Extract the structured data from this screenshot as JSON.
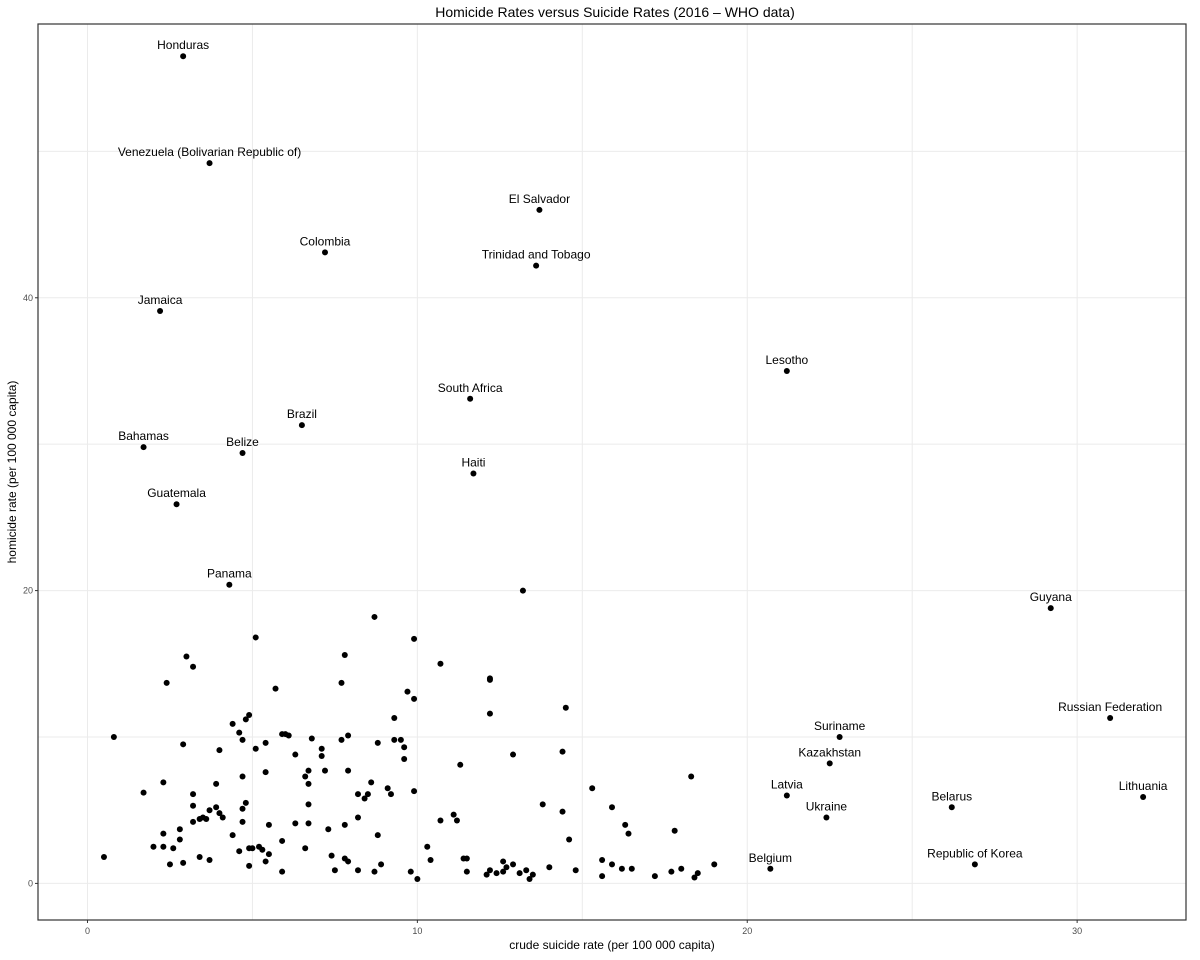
{
  "chart_data": {
    "type": "scatter",
    "title": "Homicide Rates versus Suicide Rates (2016 – WHO data)",
    "xlabel": "crude suicide rate (per 100 000 capita)",
    "ylabel": "homicide rate (per 100 000 capita)",
    "xlim": [
      -1.5,
      33.3
    ],
    "ylim": [
      -2.5,
      58.7
    ],
    "x_ticks": [
      0,
      10,
      20,
      30
    ],
    "y_ticks": [
      0,
      20,
      40
    ],
    "grid": true,
    "legend": "none",
    "colors": {
      "point": "#000000",
      "grid": "#ebebeb",
      "frame": "#333333"
    },
    "labeled_points": [
      {
        "label": "Honduras",
        "x": 2.9,
        "y": 56.5
      },
      {
        "label": "Venezuela (Bolivarian Republic of)",
        "x": 3.7,
        "y": 49.2
      },
      {
        "label": "El Salvador",
        "x": 13.7,
        "y": 46.0
      },
      {
        "label": "Colombia",
        "x": 7.2,
        "y": 43.1
      },
      {
        "label": "Trinidad and Tobago",
        "x": 13.6,
        "y": 42.2
      },
      {
        "label": "Jamaica",
        "x": 2.2,
        "y": 39.1
      },
      {
        "label": "Lesotho",
        "x": 21.2,
        "y": 35.0
      },
      {
        "label": "South Africa",
        "x": 11.6,
        "y": 33.1
      },
      {
        "label": "Brazil",
        "x": 6.5,
        "y": 31.3
      },
      {
        "label": "Bahamas",
        "x": 1.7,
        "y": 29.8
      },
      {
        "label": "Belize",
        "x": 4.7,
        "y": 29.4
      },
      {
        "label": "Haiti",
        "x": 11.7,
        "y": 28.0
      },
      {
        "label": "Guatemala",
        "x": 2.7,
        "y": 25.9
      },
      {
        "label": "Panama",
        "x": 4.3,
        "y": 20.4
      },
      {
        "label": "Guyana",
        "x": 29.2,
        "y": 18.8
      },
      {
        "label": "Russian Federation",
        "x": 31.0,
        "y": 11.3
      },
      {
        "label": "Suriname",
        "x": 22.8,
        "y": 10.0
      },
      {
        "label": "Kazakhstan",
        "x": 22.5,
        "y": 8.2
      },
      {
        "label": "Latvia",
        "x": 21.2,
        "y": 6.0
      },
      {
        "label": "Lithuania",
        "x": 32.0,
        "y": 5.9
      },
      {
        "label": "Belarus",
        "x": 26.2,
        "y": 5.2
      },
      {
        "label": "Ukraine",
        "x": 22.4,
        "y": 4.5
      },
      {
        "label": "Belgium",
        "x": 20.7,
        "y": 1.0
      },
      {
        "label": "Republic of Korea",
        "x": 26.9,
        "y": 1.3
      }
    ],
    "points": [
      [
        13.2,
        20.0
      ],
      [
        8.7,
        18.2
      ],
      [
        5.1,
        16.8
      ],
      [
        9.9,
        16.7
      ],
      [
        7.8,
        15.6
      ],
      [
        3.0,
        15.5
      ],
      [
        3.2,
        14.8
      ],
      [
        10.7,
        15.0
      ],
      [
        12.2,
        14.0
      ],
      [
        12.2,
        13.9
      ],
      [
        2.4,
        13.7
      ],
      [
        7.7,
        13.7
      ],
      [
        5.7,
        13.3
      ],
      [
        9.7,
        13.1
      ],
      [
        9.9,
        12.6
      ],
      [
        14.5,
        12.0
      ],
      [
        4.9,
        11.5
      ],
      [
        12.2,
        11.6
      ],
      [
        4.8,
        11.2
      ],
      [
        9.3,
        11.3
      ],
      [
        4.4,
        10.9
      ],
      [
        4.6,
        10.3
      ],
      [
        5.9,
        10.2
      ],
      [
        6.0,
        10.2
      ],
      [
        6.1,
        10.1
      ],
      [
        7.9,
        10.1
      ],
      [
        0.8,
        10.0
      ],
      [
        6.8,
        9.9
      ],
      [
        4.7,
        9.8
      ],
      [
        5.4,
        9.6
      ],
      [
        7.7,
        9.8
      ],
      [
        9.3,
        9.8
      ],
      [
        9.5,
        9.8
      ],
      [
        2.9,
        9.5
      ],
      [
        4.0,
        9.1
      ],
      [
        5.1,
        9.2
      ],
      [
        7.1,
        9.2
      ],
      [
        8.8,
        9.6
      ],
      [
        9.6,
        9.3
      ],
      [
        14.4,
        9.0
      ],
      [
        6.3,
        8.8
      ],
      [
        7.1,
        8.7
      ],
      [
        12.9,
        8.8
      ],
      [
        9.6,
        8.5
      ],
      [
        11.3,
        8.1
      ],
      [
        6.7,
        7.7
      ],
      [
        5.4,
        7.6
      ],
      [
        7.2,
        7.7
      ],
      [
        6.6,
        7.3
      ],
      [
        7.9,
        7.7
      ],
      [
        4.7,
        7.3
      ],
      [
        2.3,
        6.9
      ],
      [
        18.3,
        7.3
      ],
      [
        6.7,
        6.8
      ],
      [
        3.9,
        6.8
      ],
      [
        8.6,
        6.9
      ],
      [
        9.1,
        6.5
      ],
      [
        1.7,
        6.2
      ],
      [
        3.2,
        6.1
      ],
      [
        8.2,
        6.1
      ],
      [
        8.5,
        6.1
      ],
      [
        9.2,
        6.1
      ],
      [
        9.9,
        6.3
      ],
      [
        8.4,
        5.8
      ],
      [
        15.3,
        6.5
      ],
      [
        4.8,
        5.5
      ],
      [
        3.2,
        5.3
      ],
      [
        6.7,
        5.4
      ],
      [
        4.7,
        5.1
      ],
      [
        3.9,
        5.2
      ],
      [
        3.7,
        5.0
      ],
      [
        4.0,
        4.8
      ],
      [
        13.8,
        5.4
      ],
      [
        15.9,
        5.2
      ],
      [
        14.4,
        4.9
      ],
      [
        11.1,
        4.7
      ],
      [
        4.1,
        4.5
      ],
      [
        4.7,
        4.2
      ],
      [
        3.5,
        4.5
      ],
      [
        3.4,
        4.4
      ],
      [
        3.6,
        4.4
      ],
      [
        3.2,
        4.2
      ],
      [
        6.3,
        4.1
      ],
      [
        5.5,
        4.0
      ],
      [
        7.8,
        4.0
      ],
      [
        6.7,
        4.1
      ],
      [
        8.2,
        4.5
      ],
      [
        10.7,
        4.3
      ],
      [
        11.2,
        4.3
      ],
      [
        16.3,
        4.0
      ],
      [
        7.3,
        3.7
      ],
      [
        2.8,
        3.7
      ],
      [
        17.8,
        3.6
      ],
      [
        2.3,
        3.4
      ],
      [
        4.4,
        3.3
      ],
      [
        8.8,
        3.3
      ],
      [
        16.4,
        3.4
      ],
      [
        6.6,
        2.4
      ],
      [
        2.8,
        3.0
      ],
      [
        5.9,
        2.9
      ],
      [
        14.6,
        3.0
      ],
      [
        2.0,
        2.5
      ],
      [
        2.3,
        2.5
      ],
      [
        2.6,
        2.4
      ],
      [
        4.9,
        2.4
      ],
      [
        5.0,
        2.4
      ],
      [
        5.2,
        2.5
      ],
      [
        5.3,
        2.3
      ],
      [
        10.3,
        2.5
      ],
      [
        4.6,
        2.2
      ],
      [
        5.5,
        2.0
      ],
      [
        0.5,
        1.8
      ],
      [
        7.4,
        1.9
      ],
      [
        3.4,
        1.8
      ],
      [
        7.8,
        1.7
      ],
      [
        7.9,
        1.5
      ],
      [
        10.4,
        1.6
      ],
      [
        11.4,
        1.7
      ],
      [
        11.5,
        1.7
      ],
      [
        12.6,
        1.5
      ],
      [
        15.6,
        1.6
      ],
      [
        3.7,
        1.6
      ],
      [
        5.4,
        1.5
      ],
      [
        2.5,
        1.3
      ],
      [
        2.9,
        1.4
      ],
      [
        4.9,
        1.2
      ],
      [
        8.9,
        1.3
      ],
      [
        15.9,
        1.3
      ],
      [
        12.9,
        1.3
      ],
      [
        12.7,
        1.1
      ],
      [
        18.0,
        1.0
      ],
      [
        19.0,
        1.3
      ],
      [
        5.9,
        0.8
      ],
      [
        7.5,
        0.9
      ],
      [
        8.2,
        0.9
      ],
      [
        8.7,
        0.8
      ],
      [
        9.8,
        0.8
      ],
      [
        11.5,
        0.8
      ],
      [
        12.6,
        0.8
      ],
      [
        12.2,
        0.9
      ],
      [
        12.4,
        0.7
      ],
      [
        13.3,
        0.9
      ],
      [
        14.0,
        1.1
      ],
      [
        14.8,
        0.9
      ],
      [
        16.2,
        1.0
      ],
      [
        16.5,
        1.0
      ],
      [
        17.7,
        0.8
      ],
      [
        13.5,
        0.6
      ],
      [
        15.6,
        0.5
      ],
      [
        17.2,
        0.5
      ],
      [
        18.4,
        0.4
      ],
      [
        18.5,
        0.7
      ],
      [
        12.1,
        0.6
      ],
      [
        13.1,
        0.7
      ],
      [
        13.4,
        0.3
      ],
      [
        10.0,
        0.3
      ]
    ]
  }
}
